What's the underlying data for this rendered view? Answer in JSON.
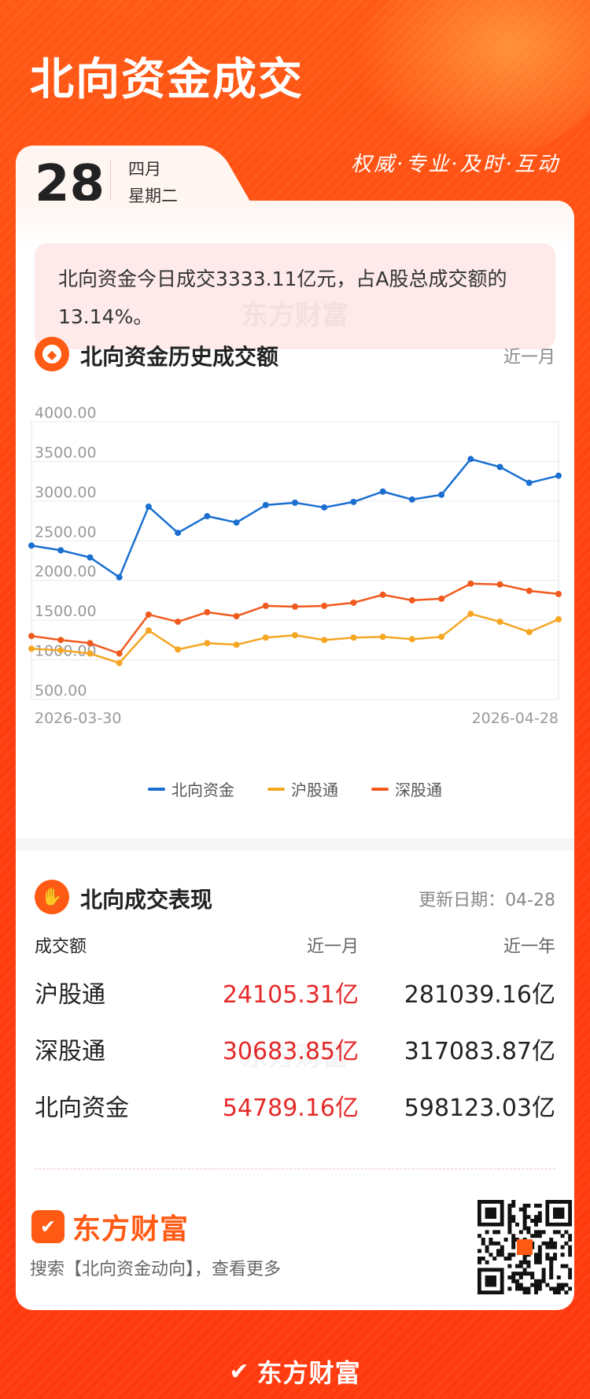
{
  "header": {
    "title": "北向资金成交",
    "slogan": "权威·专业·及时·互动"
  },
  "date": {
    "day": "28",
    "month": "四月",
    "weekday": "星期二"
  },
  "summary": {
    "text": "北向资金今日成交3333.11亿元，占A股总成交额的13.14%。"
  },
  "watermark": "东方财富",
  "history_section": {
    "title": "北向资金历史成交额",
    "range_label": "近一月",
    "icon": "coin-icon"
  },
  "chart_data": {
    "type": "line",
    "x": [
      "2026-03-30",
      "d2",
      "d3",
      "d4",
      "d5",
      "d6",
      "d7",
      "d8",
      "d9",
      "d10",
      "d11",
      "d12",
      "d13",
      "d14",
      "d15",
      "d16",
      "d17",
      "d18",
      "2026-04-28"
    ],
    "x_tick_labels": [
      "2026-03-30",
      "2026-04-28"
    ],
    "y_ticks": [
      "4000.00",
      "3500.00",
      "3000.00",
      "2500.00",
      "2000.00",
      "1500.00",
      "1000.00",
      "500.00"
    ],
    "ylim": [
      500,
      4000
    ],
    "series": [
      {
        "name": "北向资金",
        "color": "#1a6fd1",
        "values": [
          2440,
          2380,
          2290,
          2040,
          2930,
          2600,
          2810,
          2730,
          2950,
          2980,
          2920,
          2990,
          3120,
          3020,
          3080,
          3530,
          3430,
          3230,
          3320
        ]
      },
      {
        "name": "沪股通",
        "color": "#f5a623",
        "values": [
          1140,
          1120,
          1080,
          960,
          1370,
          1130,
          1210,
          1190,
          1280,
          1310,
          1250,
          1280,
          1290,
          1260,
          1290,
          1580,
          1480,
          1350,
          1510
        ]
      },
      {
        "name": "深股通",
        "color": "#f05a1e",
        "values": [
          1300,
          1250,
          1210,
          1080,
          1570,
          1480,
          1600,
          1550,
          1680,
          1670,
          1680,
          1720,
          1820,
          1750,
          1770,
          1960,
          1950,
          1870,
          1830
        ]
      }
    ],
    "grid": true,
    "legend_position": "bottom"
  },
  "performance_section": {
    "title": "北向成交表现",
    "updated": "更新日期：04-28",
    "icon": "handshake-icon",
    "columns": [
      "成交额",
      "近一月",
      "近一年"
    ],
    "rows": [
      {
        "name": "沪股通",
        "month": "24105.31亿",
        "year": "281039.16亿"
      },
      {
        "name": "深股通",
        "month": "30683.85亿",
        "year": "317083.87亿"
      },
      {
        "name": "北向资金",
        "month": "54789.16亿",
        "year": "598123.03亿"
      }
    ]
  },
  "brand": {
    "name": "东方财富",
    "search_hint": "搜索【北向资金动向】，查看更多"
  },
  "footer": {
    "name": "东方财富"
  }
}
